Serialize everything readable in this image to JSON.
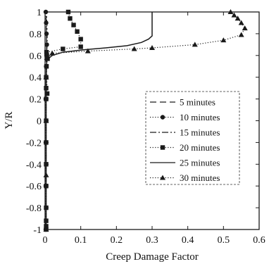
{
  "chart_data": {
    "type": "line",
    "xlabel": "Creep Damage Factor",
    "ylabel": "Y/R",
    "xlim": [
      0,
      0.6
    ],
    "ylim": [
      -1,
      1
    ],
    "xticks": [
      "0",
      "0.1",
      "0.2",
      "0.3",
      "0.4",
      "0.5",
      "0.6"
    ],
    "yticks": [
      "1",
      "0.8",
      "0.6",
      "0.4",
      "0.2",
      "0",
      "-0.2",
      "-0.4",
      "-0.6",
      "-0.8",
      "-1"
    ],
    "grid": false,
    "legend_position": "right",
    "series": [
      {
        "name": "5 minutes",
        "style": "long-dash",
        "marker": "none",
        "x": [
          0.003,
          0.003,
          0.003,
          0.003,
          0.004,
          0.005,
          0.004,
          0.004,
          0.003,
          0.003
        ],
        "y": [
          -1,
          -0.6,
          -0.2,
          0.2,
          0.5,
          0.6,
          0.7,
          0.8,
          0.9,
          1
        ]
      },
      {
        "name": "10 minutes",
        "style": "dotted",
        "marker": "circle",
        "x": [
          0.002,
          0.002,
          0.002,
          0.002,
          0.003,
          0.004,
          0.005,
          0.004,
          0.003,
          0.002
        ],
        "y": [
          -1,
          -0.6,
          -0.2,
          0.2,
          0.5,
          0.6,
          0.7,
          0.8,
          0.9,
          1
        ]
      },
      {
        "name": "15 minutes",
        "style": "dash-dot",
        "marker": "none",
        "x": [
          0.003,
          0.003,
          0.003,
          0.003,
          0.003,
          0.004,
          0.006,
          0.006,
          0.005,
          0.004
        ],
        "y": [
          -1,
          -0.6,
          -0.2,
          0.2,
          0.5,
          0.6,
          0.7,
          0.8,
          0.9,
          1
        ]
      },
      {
        "name": "20 minutes",
        "style": "dotted",
        "marker": "square",
        "x": [
          0.003,
          0.003,
          0.003,
          0.003,
          0.003,
          0.003,
          0.003,
          0.003,
          0.003,
          0.003,
          0.003,
          0.006,
          0.004,
          0.007,
          0.005,
          0.004,
          0.05,
          0.1,
          0.1,
          0.09,
          0.08,
          0.07,
          0.065
        ],
        "y": [
          -1,
          -0.97,
          -0.92,
          -0.8,
          -0.6,
          -0.4,
          -0.2,
          0,
          0.2,
          0.3,
          0.4,
          0.25,
          0.5,
          0.57,
          0.6,
          0.63,
          0.66,
          0.68,
          0.75,
          0.82,
          0.88,
          0.94,
          1
        ]
      },
      {
        "name": "25 minutes",
        "style": "solid",
        "marker": "none",
        "x": [
          0.003,
          0.003,
          0.003,
          0.003,
          0.005,
          0.02,
          0.05,
          0.1,
          0.17,
          0.23,
          0.27,
          0.29,
          0.3,
          0.3,
          0.3,
          0.3,
          0.3
        ],
        "y": [
          -1,
          -0.5,
          0,
          0.4,
          0.56,
          0.6,
          0.63,
          0.65,
          0.67,
          0.69,
          0.72,
          0.75,
          0.78,
          0.85,
          0.9,
          0.95,
          1
        ]
      },
      {
        "name": "30 minutes",
        "style": "dotted",
        "marker": "triangle",
        "x": [
          0.003,
          0.003,
          0.003,
          0.003,
          0.005,
          0.02,
          0.12,
          0.25,
          0.3,
          0.42,
          0.5,
          0.55,
          0.56,
          0.55,
          0.54,
          0.53,
          0.52
        ],
        "y": [
          -1,
          -0.5,
          0,
          0.4,
          0.58,
          0.62,
          0.64,
          0.66,
          0.67,
          0.7,
          0.74,
          0.79,
          0.85,
          0.9,
          0.94,
          0.97,
          1
        ]
      }
    ]
  }
}
